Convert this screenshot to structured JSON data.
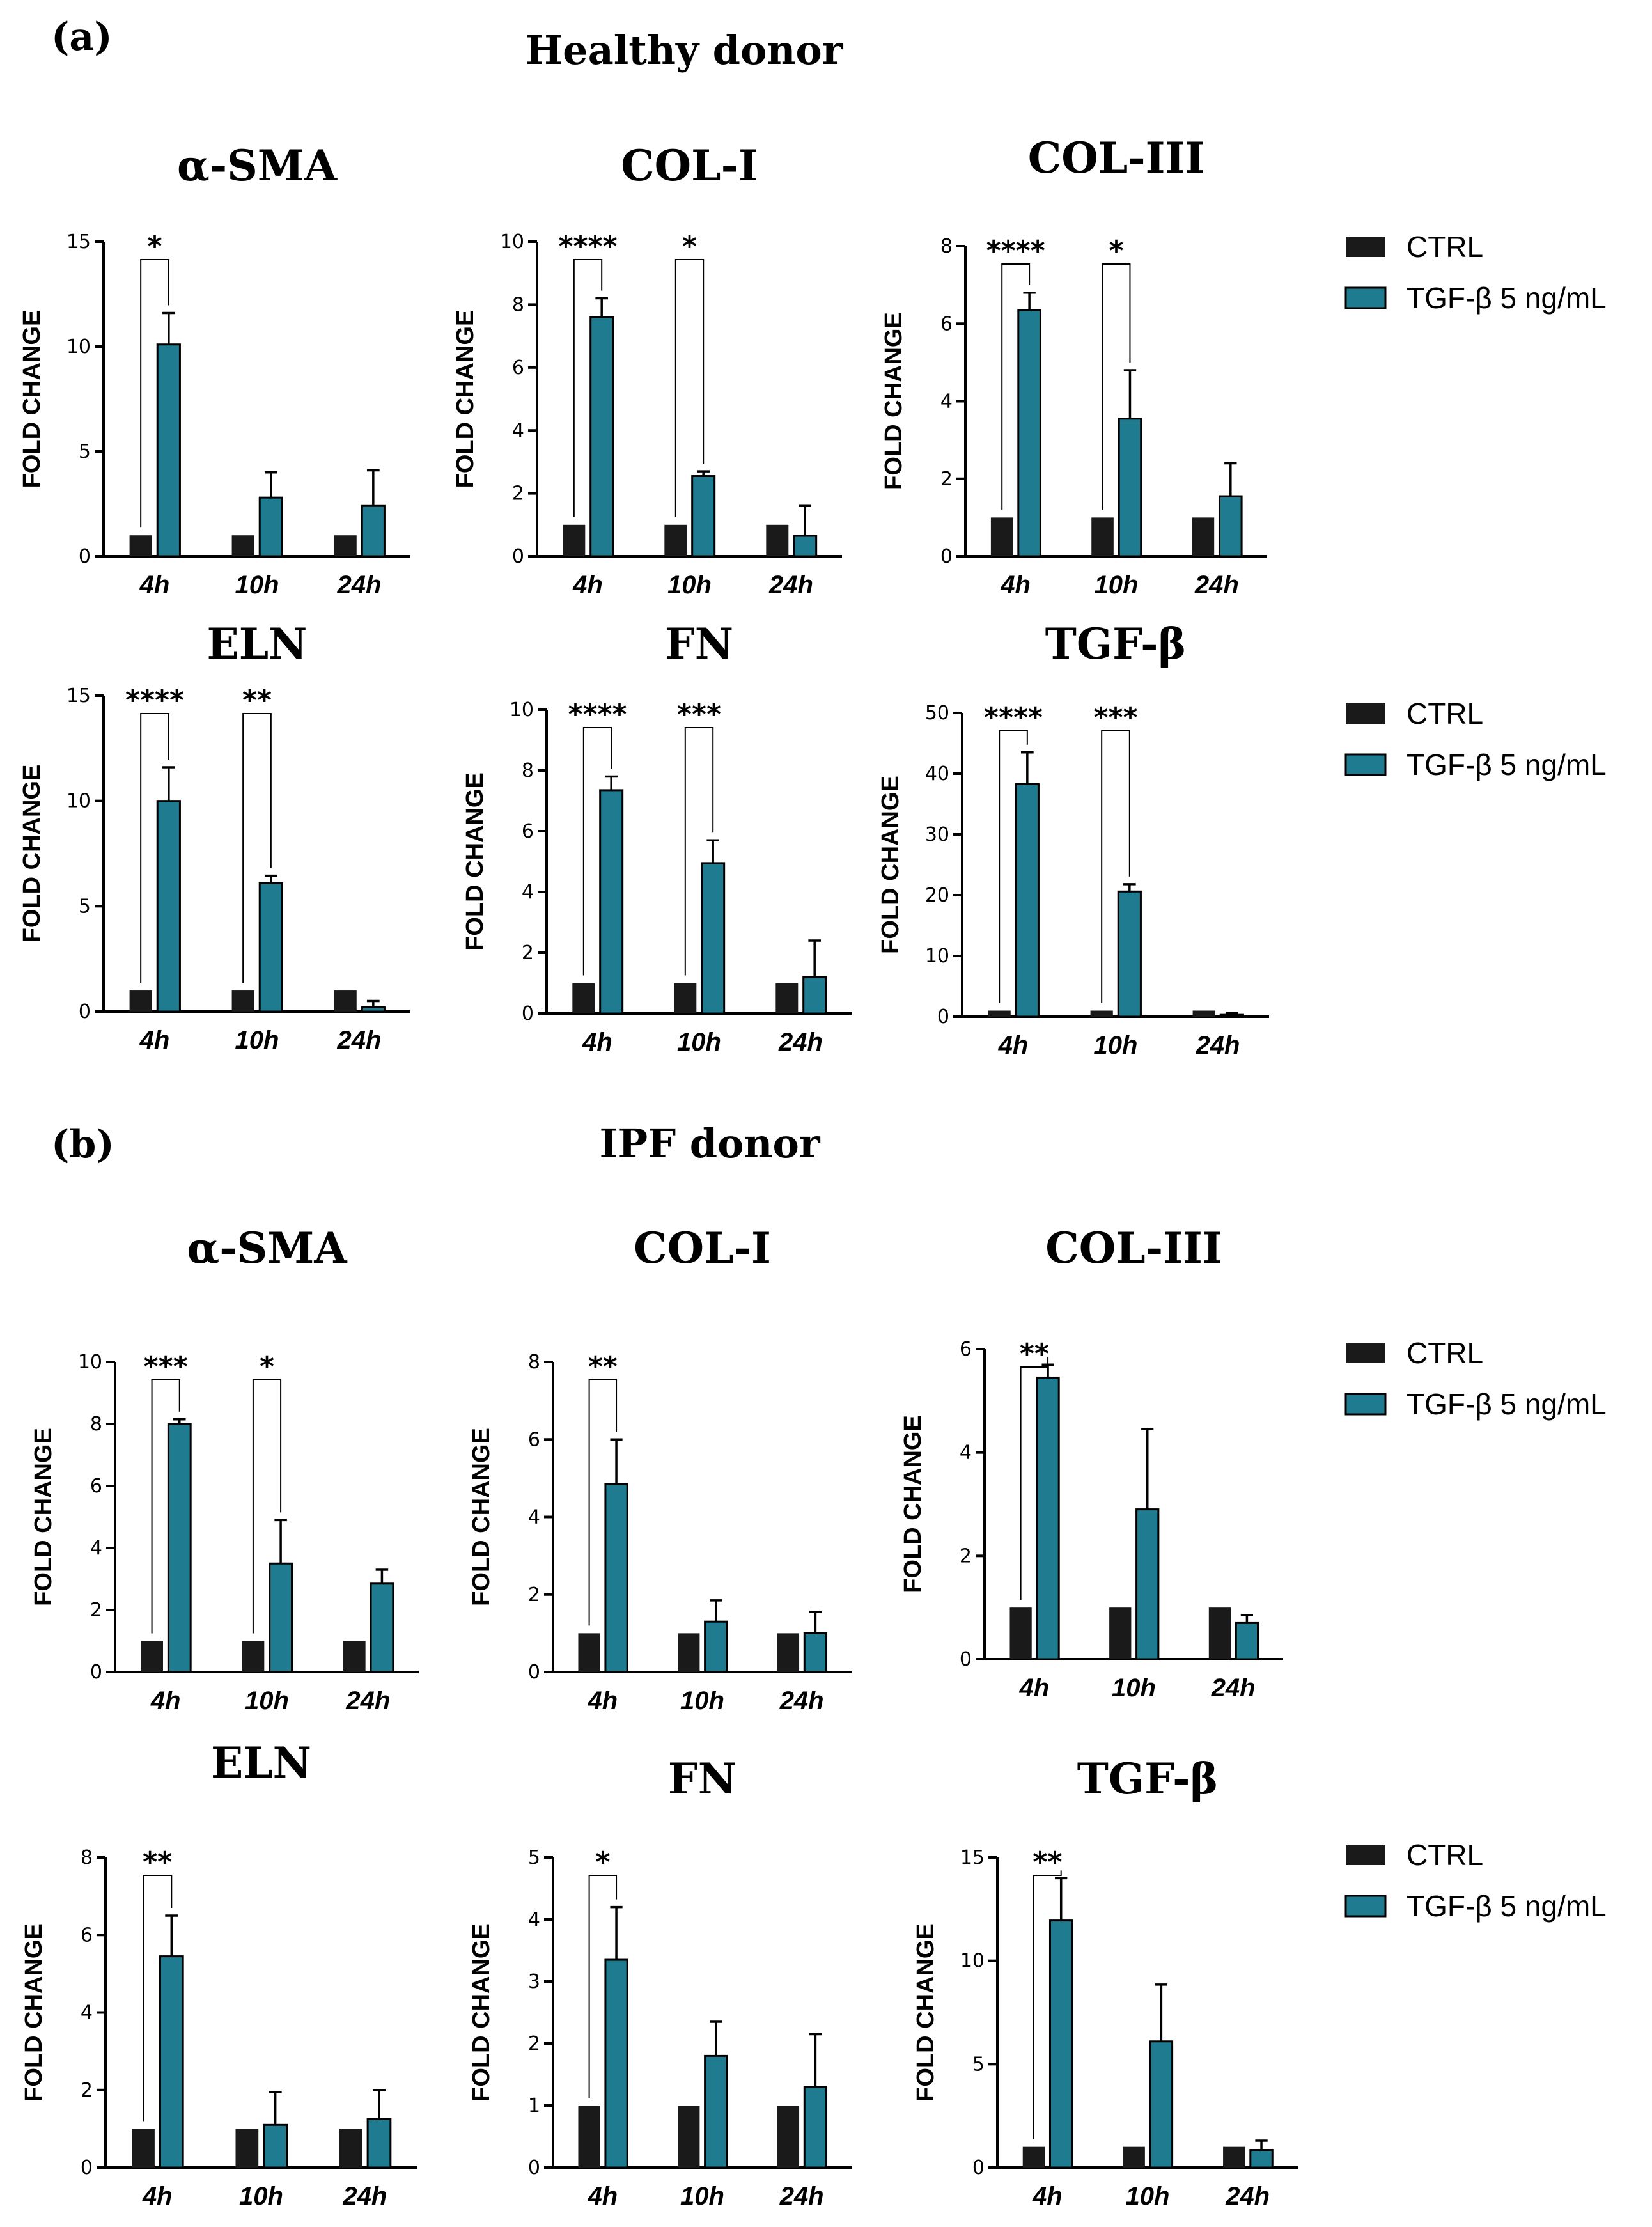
{
  "panels": [
    {
      "label": "(a)",
      "title": "Healthy donor"
    },
    {
      "label": "(b)",
      "title": "IPF donor"
    }
  ],
  "legend": {
    "ctrl": "CTRL",
    "tgf": "TGF-β 5 ng/mL"
  },
  "colors": {
    "ctrl": "#1a1a1a",
    "tgf": "#1f7c90"
  },
  "chart_data": [
    {
      "type": "bar",
      "panel": "(a) Healthy donor",
      "title": "α-SMA",
      "ylabel": "FOLD CHANGE",
      "ylim": [
        0,
        15
      ],
      "yticks": [
        0,
        5,
        10,
        15
      ],
      "categories": [
        "4h",
        "10h",
        "24h"
      ],
      "series": [
        {
          "name": "CTRL",
          "values": [
            1,
            1,
            1
          ]
        },
        {
          "name": "TGF-β 5 ng/mL",
          "values": [
            10.1,
            2.8,
            2.4
          ],
          "errors": [
            1.5,
            1.2,
            1.7
          ]
        }
      ],
      "significance": [
        {
          "category": "4h",
          "label": "*"
        }
      ]
    },
    {
      "type": "bar",
      "panel": "(a) Healthy donor",
      "title": "COL-I",
      "ylabel": "FOLD CHANGE",
      "ylim": [
        0,
        10
      ],
      "yticks": [
        0,
        2,
        4,
        6,
        8,
        10
      ],
      "categories": [
        "4h",
        "10h",
        "24h"
      ],
      "series": [
        {
          "name": "CTRL",
          "values": [
            1,
            1,
            1
          ]
        },
        {
          "name": "TGF-β 5 ng/mL",
          "values": [
            7.6,
            2.55,
            0.65
          ],
          "errors": [
            0.6,
            0.15,
            0.95
          ]
        }
      ],
      "significance": [
        {
          "category": "4h",
          "label": "****"
        },
        {
          "category": "10h",
          "label": "*"
        }
      ]
    },
    {
      "type": "bar",
      "panel": "(a) Healthy donor",
      "title": "COL-III",
      "ylabel": "FOLD CHANGE",
      "ylim": [
        0,
        8
      ],
      "yticks": [
        0,
        2,
        4,
        6,
        8
      ],
      "categories": [
        "4h",
        "10h",
        "24h"
      ],
      "series": [
        {
          "name": "CTRL",
          "values": [
            1,
            1,
            1
          ]
        },
        {
          "name": "TGF-β 5 ng/mL",
          "values": [
            6.35,
            3.55,
            1.55
          ],
          "errors": [
            0.45,
            1.25,
            0.85
          ]
        }
      ],
      "significance": [
        {
          "category": "4h",
          "label": "****"
        },
        {
          "category": "10h",
          "label": "*"
        }
      ]
    },
    {
      "type": "bar",
      "panel": "(a) Healthy donor",
      "title": "ELN",
      "ylabel": "FOLD CHANGE",
      "ylim": [
        0,
        15
      ],
      "yticks": [
        0,
        5,
        10,
        15
      ],
      "categories": [
        "4h",
        "10h",
        "24h"
      ],
      "series": [
        {
          "name": "CTRL",
          "values": [
            1,
            1,
            1
          ]
        },
        {
          "name": "TGF-β 5 ng/mL",
          "values": [
            10.0,
            6.1,
            0.2
          ],
          "errors": [
            1.6,
            0.35,
            0.3
          ]
        }
      ],
      "significance": [
        {
          "category": "4h",
          "label": "****"
        },
        {
          "category": "10h",
          "label": "**"
        }
      ]
    },
    {
      "type": "bar",
      "panel": "(a) Healthy donor",
      "title": "FN",
      "ylabel": "FOLD CHANGE",
      "ylim": [
        0,
        10
      ],
      "yticks": [
        0,
        2,
        4,
        6,
        8,
        10
      ],
      "categories": [
        "4h",
        "10h",
        "24h"
      ],
      "series": [
        {
          "name": "CTRL",
          "values": [
            1,
            1,
            1
          ]
        },
        {
          "name": "TGF-β 5 ng/mL",
          "values": [
            7.35,
            4.95,
            1.2
          ],
          "errors": [
            0.45,
            0.75,
            1.2
          ]
        }
      ],
      "significance": [
        {
          "category": "4h",
          "label": "****"
        },
        {
          "category": "10h",
          "label": "***"
        }
      ]
    },
    {
      "type": "bar",
      "panel": "(a) Healthy donor",
      "title": "TGF-β",
      "ylabel": "FOLD CHANGE",
      "ylim": [
        0,
        50
      ],
      "yticks": [
        0,
        10,
        20,
        30,
        40,
        50
      ],
      "categories": [
        "4h",
        "10h",
        "24h"
      ],
      "series": [
        {
          "name": "CTRL",
          "values": [
            1,
            1,
            1
          ]
        },
        {
          "name": "TGF-β 5 ng/mL",
          "values": [
            38.3,
            20.6,
            0.3
          ],
          "errors": [
            5.2,
            1.2,
            0.3
          ]
        }
      ],
      "significance": [
        {
          "category": "4h",
          "label": "****"
        },
        {
          "category": "10h",
          "label": "***"
        }
      ]
    },
    {
      "type": "bar",
      "panel": "(b) IPF donor",
      "title": "α-SMA",
      "ylabel": "FOLD CHANGE",
      "ylim": [
        0,
        10
      ],
      "yticks": [
        0,
        2,
        4,
        6,
        8,
        10
      ],
      "categories": [
        "4h",
        "10h",
        "24h"
      ],
      "series": [
        {
          "name": "CTRL",
          "values": [
            1,
            1,
            1
          ]
        },
        {
          "name": "TGF-β 5 ng/mL",
          "values": [
            8.0,
            3.5,
            2.85
          ],
          "errors": [
            0.15,
            1.4,
            0.45
          ]
        }
      ],
      "significance": [
        {
          "category": "4h",
          "label": "***"
        },
        {
          "category": "10h",
          "label": "*"
        }
      ]
    },
    {
      "type": "bar",
      "panel": "(b) IPF donor",
      "title": "COL-I",
      "ylabel": "FOLD CHANGE",
      "ylim": [
        0,
        8
      ],
      "yticks": [
        0,
        2,
        4,
        6,
        8
      ],
      "categories": [
        "4h",
        "10h",
        "24h"
      ],
      "series": [
        {
          "name": "CTRL",
          "values": [
            1,
            1,
            1
          ]
        },
        {
          "name": "TGF-β 5 ng/mL",
          "values": [
            4.85,
            1.3,
            1.0
          ],
          "errors": [
            1.15,
            0.55,
            0.55
          ]
        }
      ],
      "significance": [
        {
          "category": "4h",
          "label": "**"
        }
      ]
    },
    {
      "type": "bar",
      "panel": "(b) IPF donor",
      "title": "COL-III",
      "ylabel": "FOLD CHANGE",
      "ylim": [
        0,
        6
      ],
      "yticks": [
        0,
        2,
        4,
        6
      ],
      "categories": [
        "4h",
        "10h",
        "24h"
      ],
      "series": [
        {
          "name": "CTRL",
          "values": [
            1,
            1,
            1
          ]
        },
        {
          "name": "TGF-β 5 ng/mL",
          "values": [
            5.45,
            2.9,
            0.7
          ],
          "errors": [
            0.25,
            1.55,
            0.15
          ]
        }
      ],
      "significance": [
        {
          "category": "4h",
          "label": "**"
        }
      ]
    },
    {
      "type": "bar",
      "panel": "(b) IPF donor",
      "title": "ELN",
      "ylabel": "FOLD CHANGE",
      "ylim": [
        0,
        8
      ],
      "yticks": [
        0,
        2,
        4,
        6,
        8
      ],
      "categories": [
        "4h",
        "10h",
        "24h"
      ],
      "series": [
        {
          "name": "CTRL",
          "values": [
            1,
            1,
            1
          ]
        },
        {
          "name": "TGF-β 5 ng/mL",
          "values": [
            5.45,
            1.1,
            1.25
          ],
          "errors": [
            1.05,
            0.85,
            0.75
          ]
        }
      ],
      "significance": [
        {
          "category": "4h",
          "label": "**"
        }
      ]
    },
    {
      "type": "bar",
      "panel": "(b) IPF donor",
      "title": "FN",
      "ylabel": "FOLD CHANGE",
      "ylim": [
        0,
        5
      ],
      "yticks": [
        0,
        1,
        2,
        3,
        4,
        5
      ],
      "categories": [
        "4h",
        "10h",
        "24h"
      ],
      "series": [
        {
          "name": "CTRL",
          "values": [
            1,
            1,
            1
          ]
        },
        {
          "name": "TGF-β 5 ng/mL",
          "values": [
            3.35,
            1.8,
            1.3
          ],
          "errors": [
            0.85,
            0.55,
            0.85
          ]
        }
      ],
      "significance": [
        {
          "category": "4h",
          "label": "*"
        }
      ]
    },
    {
      "type": "bar",
      "panel": "(b) IPF donor",
      "title": "TGF-β",
      "ylabel": "FOLD CHANGE",
      "ylim": [
        0,
        15
      ],
      "yticks": [
        0,
        5,
        10,
        15
      ],
      "categories": [
        "4h",
        "10h",
        "24h"
      ],
      "series": [
        {
          "name": "CTRL",
          "values": [
            1,
            1,
            1
          ]
        },
        {
          "name": "TGF-β 5 ng/mL",
          "values": [
            11.95,
            6.1,
            0.85
          ],
          "errors": [
            2.05,
            2.75,
            0.45
          ]
        }
      ],
      "significance": [
        {
          "category": "4h",
          "label": "**"
        }
      ]
    }
  ]
}
